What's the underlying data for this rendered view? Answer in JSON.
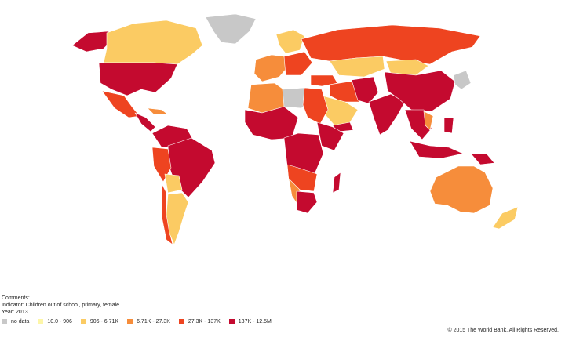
{
  "colors": {
    "no_data": "#c8c8c8",
    "bin1": "#fdf6a8",
    "bin2": "#fbcb63",
    "bin3": "#f68d3b",
    "bin4": "#ee4420",
    "bin5": "#c40a2f",
    "border": "#ffffff"
  },
  "comments_label": "Comments:",
  "indicator_line": "Indicator: Children out of school, primary, female",
  "year_line": "Year: 2013",
  "legend": [
    {
      "label": "no data",
      "color": "#c8c8c8"
    },
    {
      "label": "10.0 - 906",
      "color": "#fdf6a8"
    },
    {
      "label": "906 - 6.71K",
      "color": "#fbcb63"
    },
    {
      "label": "6.71K - 27.3K",
      "color": "#f68d3b"
    },
    {
      "label": "27.3K - 137K",
      "color": "#ee4420"
    },
    {
      "label": "137K - 12.5M",
      "color": "#c40a2f"
    }
  ],
  "copyright": "© 2015 The World Bank, All Rights Reserved."
}
